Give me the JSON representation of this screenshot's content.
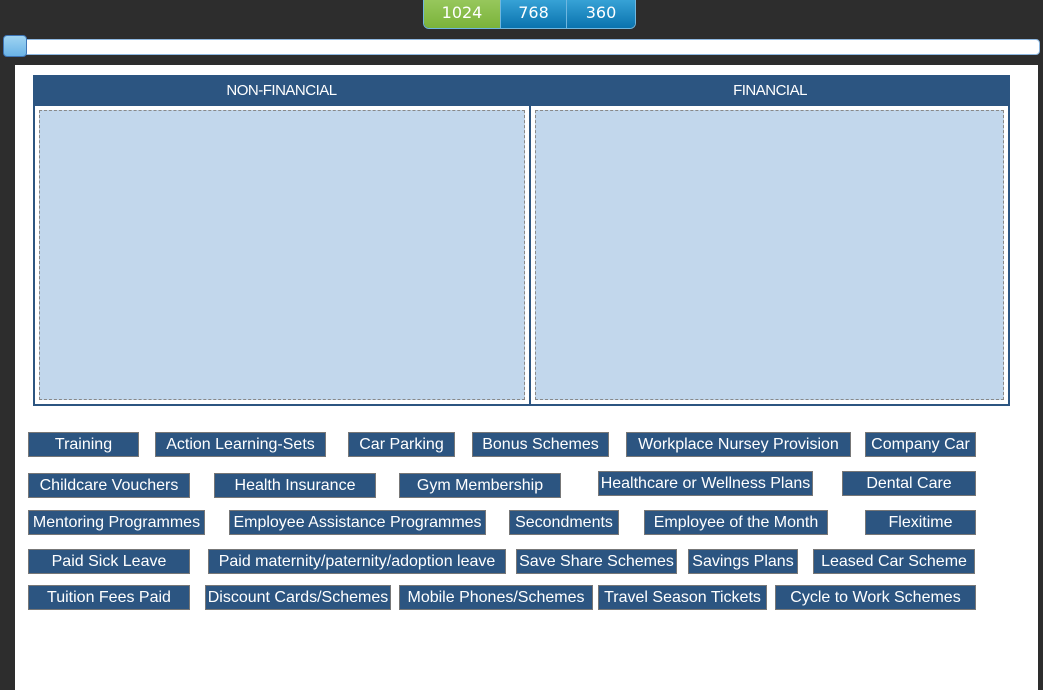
{
  "viewport_buttons": [
    "1024",
    "768",
    "360"
  ],
  "selected_viewport": "1024",
  "colors": {
    "header": "#2c5581",
    "dropzone": "#c2d7ec",
    "active_tab": "#7ab33a",
    "tab": "#0a73ae"
  },
  "columns": [
    {
      "title": "NON-FINANCIAL"
    },
    {
      "title": "FINANCIAL"
    }
  ],
  "items": [
    "Training",
    "Action Learning-Sets",
    "Car Parking",
    "Bonus Schemes",
    "Workplace Nursey Provision",
    "Company Car",
    "Childcare Vouchers",
    "Health Insurance",
    "Gym Membership",
    "Healthcare or Wellness Plans",
    "Dental Care",
    "Mentoring Programmes",
    "Employee Assistance Programmes",
    "Secondments",
    "Employee of the Month",
    "Flexitime",
    "Paid Sick Leave",
    "Paid maternity/paternity/adoption leave",
    "Save Share Schemes",
    "Savings Plans",
    "Leased Car Scheme",
    "Tuition Fees Paid",
    "Discount Cards/Schemes",
    "Mobile Phones/Schemes",
    "Travel Season Tickets",
    "Cycle to Work Schemes"
  ]
}
